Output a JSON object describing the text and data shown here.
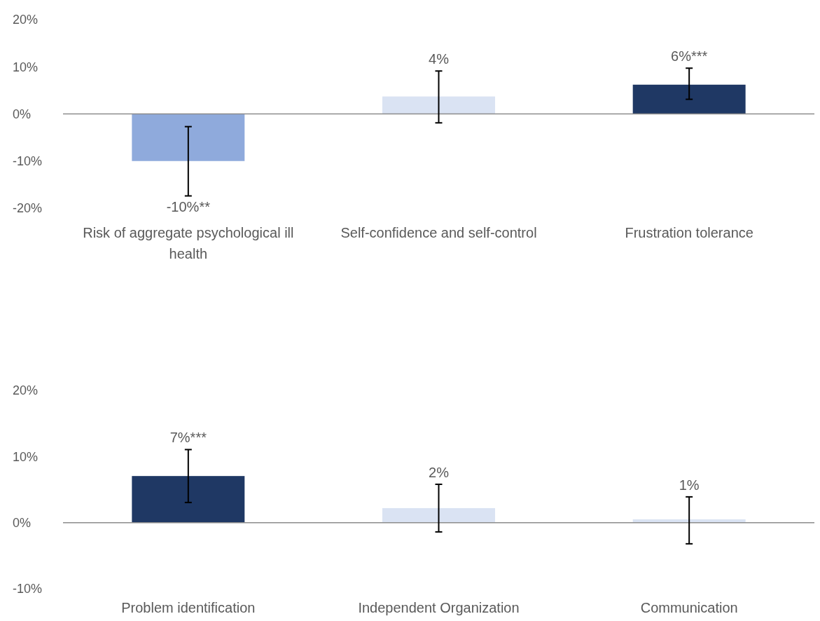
{
  "chart_data": [
    {
      "type": "bar",
      "categories": [
        "Risk of aggregate psychological ill health",
        "Self-confidence and self-control",
        "Frustration tolerance"
      ],
      "values": [
        -10,
        3.7,
        6.2
      ],
      "colors": [
        "#8faadc",
        "#dae3f3",
        "#1f3864"
      ],
      "errors": [
        [
          -17.4,
          -2.7
        ],
        [
          -1.9,
          9.1
        ],
        [
          3.1,
          9.7
        ]
      ],
      "value_labels": [
        "-10%**",
        "4%",
        "6%***"
      ],
      "ylim": [
        -20,
        20
      ],
      "yticks": [
        {
          "value": -20,
          "label": "-20%"
        },
        {
          "value": -10,
          "label": "-10%"
        },
        {
          "value": 0,
          "label": "0%"
        },
        {
          "value": 10,
          "label": "10%"
        },
        {
          "value": 20,
          "label": "20%"
        }
      ]
    },
    {
      "type": "bar",
      "categories": [
        "Problem identification",
        "Independent Organization",
        "Communication"
      ],
      "values": [
        7.05,
        2.2,
        0.5
      ],
      "colors": [
        "#1f3864",
        "#dae3f3",
        "#dae3f3"
      ],
      "errors": [
        [
          3.05,
          11.05
        ],
        [
          -1.4,
          5.8
        ],
        [
          -3.2,
          3.9
        ]
      ],
      "value_labels": [
        "7%***",
        "2%",
        "1%"
      ],
      "ylim": [
        -10,
        20
      ],
      "yticks": [
        {
          "value": -10,
          "label": "-10%"
        },
        {
          "value": 0,
          "label": "0%"
        },
        {
          "value": 10,
          "label": "10%"
        },
        {
          "value": 20,
          "label": "20%"
        }
      ]
    }
  ]
}
